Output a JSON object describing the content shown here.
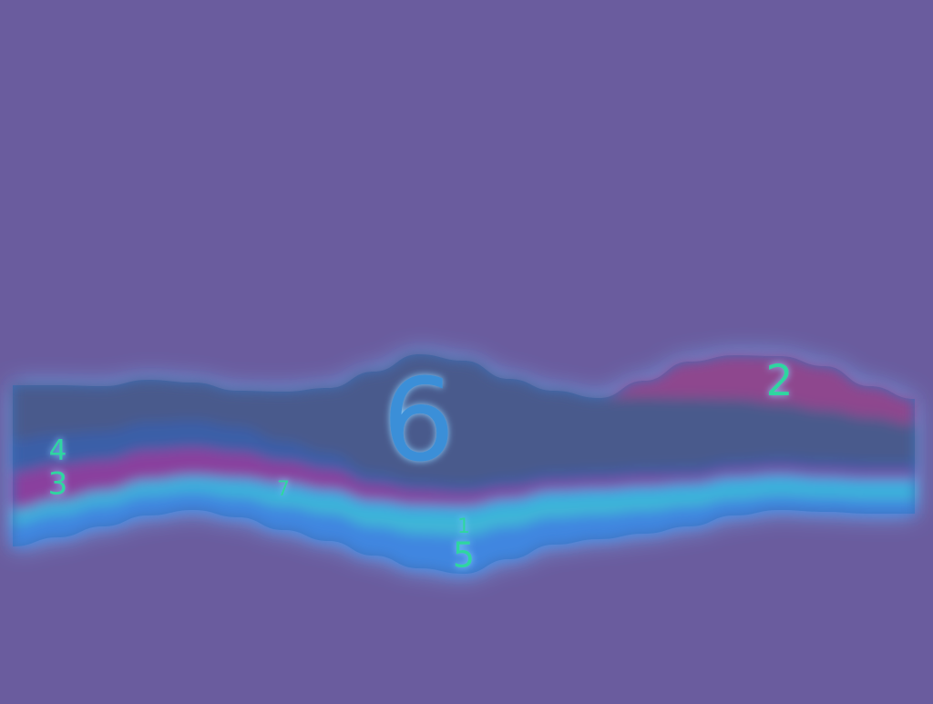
{
  "colors": {
    "background": "#6a5c9e",
    "glow": "#6fb6ff",
    "label_fill": "#2fd6a0",
    "label_outline": "#8ad0ff"
  },
  "chart_data": {
    "type": "area",
    "style": "streamgraph",
    "x": [
      0,
      1,
      2,
      3,
      4,
      5,
      6,
      7,
      8,
      9,
      10,
      11,
      12,
      13,
      14,
      15,
      16,
      17,
      18,
      19,
      20
    ],
    "legend": "none",
    "grid": false,
    "axes": "none",
    "series": [
      {
        "name": "5",
        "color": "#3f86e0",
        "values": [
          25,
          25,
          23,
          22,
          20,
          22,
          26,
          30,
          32,
          38,
          42,
          36,
          30,
          27,
          25,
          22,
          18,
          16,
          16,
          16,
          16
        ]
      },
      {
        "name": "1",
        "color": "#3fb7d6",
        "values": [
          10,
          10,
          10,
          10,
          10,
          12,
          15,
          16,
          18,
          21,
          22,
          20,
          19,
          18,
          17,
          15,
          14,
          13,
          12,
          12,
          12
        ]
      },
      {
        "name": "7",
        "color": "#2fa8e8",
        "values": [
          6,
          6,
          6,
          7,
          8,
          9,
          10,
          10,
          10,
          10,
          10,
          10,
          10,
          10,
          10,
          10,
          10,
          10,
          10,
          10,
          10
        ]
      },
      {
        "name": "3",
        "color": "#8a3f9e",
        "values": [
          40,
          38,
          33,
          32,
          30,
          28,
          24,
          22,
          18,
          16,
          14,
          12,
          10,
          10,
          10,
          8,
          8,
          8,
          8,
          8,
          8
        ]
      },
      {
        "name": "4",
        "color": "#3b5fa8",
        "values": [
          36,
          34,
          32,
          31,
          30,
          28,
          22,
          18,
          12,
          10,
          10,
          10,
          10,
          10,
          10,
          10,
          10,
          10,
          10,
          10,
          10
        ]
      },
      {
        "name": "6",
        "color": "#4a5a8c",
        "values": [
          60,
          54,
          50,
          47,
          42,
          40,
          55,
          72,
          112,
          140,
          136,
          110,
          90,
          80,
          78,
          76,
          68,
          60,
          56,
          50,
          42
        ]
      },
      {
        "name": "2",
        "color": "#8e468e",
        "values": [
          0,
          0,
          0,
          0,
          0,
          0,
          0,
          0,
          0,
          0,
          0,
          0,
          0,
          0,
          18,
          40,
          48,
          52,
          48,
          34,
          28
        ]
      }
    ]
  }
}
